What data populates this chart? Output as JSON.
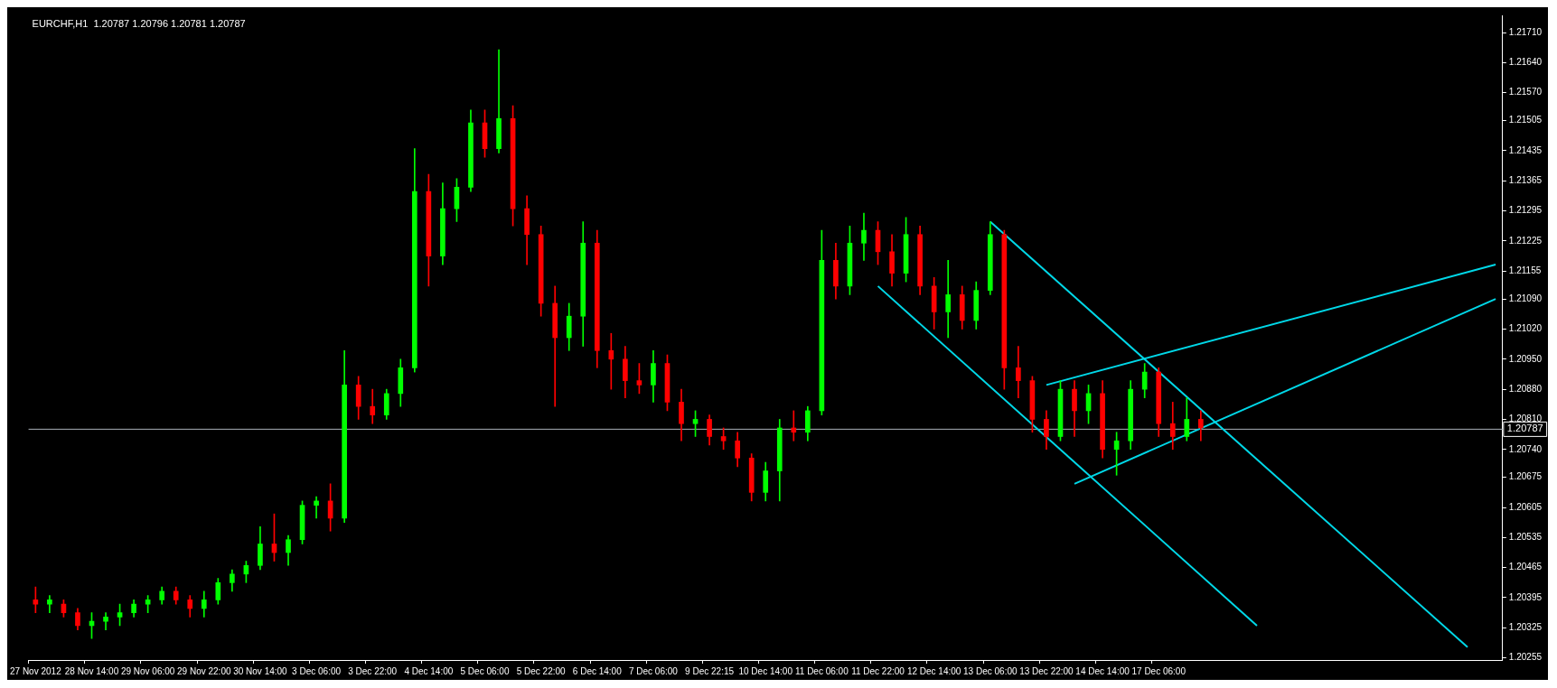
{
  "chart_data": {
    "type": "candlestick",
    "title": "EURCHF,H1  1.20787 1.20796 1.20781 1.20787",
    "categories": [
      "27 Nov 2012",
      null,
      null,
      null,
      "28 Nov 14:00",
      null,
      null,
      null,
      "29 Nov 06:00",
      null,
      null,
      null,
      "29 Nov 22:00",
      null,
      null,
      null,
      "30 Nov 14:00",
      null,
      null,
      null,
      "3 Dec 06:00",
      null,
      null,
      null,
      "3 Dec 22:00",
      null,
      null,
      null,
      "4 Dec 14:00",
      null,
      null,
      null,
      "5 Dec 06:00",
      null,
      null,
      null,
      "5 Dec 22:00",
      null,
      null,
      null,
      "6 Dec 14:00",
      null,
      null,
      null,
      "7 Dec 06:00",
      null,
      null,
      null,
      "9 Dec 22:15",
      null,
      null,
      null,
      "10 Dec 14:00",
      null,
      null,
      null,
      "11 Dec 06:00",
      null,
      null,
      null,
      "11 Dec 22:00",
      null,
      null,
      null,
      "12 Dec 14:00",
      null,
      null,
      null,
      "13 Dec 06:00",
      null,
      null,
      null,
      "13 Dec 22:00",
      null,
      null,
      null,
      "14 Dec 14:00",
      null,
      null,
      null,
      "17 Dec 06:00",
      null,
      null,
      null,
      null,
      null,
      null,
      null,
      null,
      null,
      null,
      null,
      null,
      null,
      null,
      null,
      null,
      null,
      null,
      null,
      null,
      null,
      null,
      null,
      null
    ],
    "ohlc": [
      [
        1.2039,
        1.2042,
        1.2036,
        1.2038
      ],
      [
        1.2038,
        1.204,
        1.2036,
        1.2039
      ],
      [
        1.2038,
        1.2039,
        1.2035,
        1.2036
      ],
      [
        1.2036,
        1.2037,
        1.2032,
        1.2033
      ],
      [
        1.2033,
        1.2036,
        1.203,
        1.2034
      ],
      [
        1.2034,
        1.2036,
        1.2032,
        1.2035
      ],
      [
        1.2035,
        1.2038,
        1.2033,
        1.2036
      ],
      [
        1.2036,
        1.2039,
        1.2035,
        1.2038
      ],
      [
        1.2038,
        1.204,
        1.2036,
        1.2039
      ],
      [
        1.2039,
        1.2042,
        1.2038,
        1.2041
      ],
      [
        1.2041,
        1.2042,
        1.2038,
        1.2039
      ],
      [
        1.2039,
        1.204,
        1.2035,
        1.2037
      ],
      [
        1.2037,
        1.2041,
        1.2035,
        1.2039
      ],
      [
        1.2039,
        1.2044,
        1.2038,
        1.2043
      ],
      [
        1.2043,
        1.2046,
        1.2041,
        1.2045
      ],
      [
        1.2045,
        1.2048,
        1.2043,
        1.2047
      ],
      [
        1.2047,
        1.2056,
        1.2046,
        1.2052
      ],
      [
        1.2052,
        1.2059,
        1.2048,
        1.205
      ],
      [
        1.205,
        1.2054,
        1.2047,
        1.2053
      ],
      [
        1.2053,
        1.2062,
        1.2052,
        1.2061
      ],
      [
        1.2061,
        1.2063,
        1.2058,
        1.2062
      ],
      [
        1.2062,
        1.2066,
        1.2055,
        1.2058
      ],
      [
        1.2058,
        1.2097,
        1.2057,
        1.2089
      ],
      [
        1.2089,
        1.2091,
        1.2081,
        1.2084
      ],
      [
        1.2084,
        1.2088,
        1.208,
        1.2082
      ],
      [
        1.2082,
        1.2088,
        1.2081,
        1.2087
      ],
      [
        1.2087,
        1.2095,
        1.2084,
        1.2093
      ],
      [
        1.2093,
        1.2144,
        1.2092,
        1.2134
      ],
      [
        1.2134,
        1.2138,
        1.2112,
        1.2119
      ],
      [
        1.2119,
        1.2136,
        1.2117,
        1.213
      ],
      [
        1.213,
        1.2137,
        1.2127,
        1.2135
      ],
      [
        1.2135,
        1.2153,
        1.2134,
        1.215
      ],
      [
        1.215,
        1.2153,
        1.2142,
        1.2144
      ],
      [
        1.2144,
        1.2167,
        1.2143,
        1.2151
      ],
      [
        1.2151,
        1.2154,
        1.2126,
        1.213
      ],
      [
        1.213,
        1.2133,
        1.2117,
        1.2124
      ],
      [
        1.2124,
        1.2126,
        1.2105,
        1.2108
      ],
      [
        1.2108,
        1.2112,
        1.2084,
        1.21
      ],
      [
        1.21,
        1.2108,
        1.2097,
        1.2105
      ],
      [
        1.2105,
        1.2127,
        1.2098,
        1.2122
      ],
      [
        1.2122,
        1.2125,
        1.2093,
        1.2097
      ],
      [
        1.2097,
        1.2101,
        1.2088,
        1.2095
      ],
      [
        1.2095,
        1.2098,
        1.2086,
        1.209
      ],
      [
        1.209,
        1.2094,
        1.2087,
        1.2089
      ],
      [
        1.2089,
        1.2097,
        1.2085,
        1.2094
      ],
      [
        1.2094,
        1.2096,
        1.2083,
        1.2085
      ],
      [
        1.2085,
        1.2088,
        1.2076,
        1.208
      ],
      [
        1.208,
        1.2083,
        1.2077,
        1.2081
      ],
      [
        1.2081,
        1.2082,
        1.2075,
        1.2077
      ],
      [
        1.2077,
        1.2079,
        1.2074,
        1.2076
      ],
      [
        1.2076,
        1.2078,
        1.207,
        1.2072
      ],
      [
        1.2072,
        1.2073,
        1.2062,
        1.2064
      ],
      [
        1.2064,
        1.2071,
        1.2062,
        1.2069
      ],
      [
        1.2069,
        1.2081,
        1.2062,
        1.2079
      ],
      [
        1.2079,
        1.2083,
        1.2076,
        1.2078
      ],
      [
        1.2078,
        1.2084,
        1.2076,
        1.2083
      ],
      [
        1.2083,
        1.2125,
        1.2082,
        1.2118
      ],
      [
        1.2118,
        1.2122,
        1.2109,
        1.2112
      ],
      [
        1.2112,
        1.2126,
        1.211,
        1.2122
      ],
      [
        1.2122,
        1.2129,
        1.2118,
        1.2125
      ],
      [
        1.2125,
        1.2127,
        1.2117,
        1.212
      ],
      [
        1.212,
        1.2124,
        1.2112,
        1.2115
      ],
      [
        1.2115,
        1.2128,
        1.2113,
        1.2124
      ],
      [
        1.2124,
        1.2126,
        1.211,
        1.2112
      ],
      [
        1.2112,
        1.2114,
        1.2102,
        1.2106
      ],
      [
        1.2106,
        1.2118,
        1.21,
        1.211
      ],
      [
        1.211,
        1.2112,
        1.2102,
        1.2104
      ],
      [
        1.2104,
        1.2113,
        1.2102,
        1.2111
      ],
      [
        1.2111,
        1.2127,
        1.211,
        1.2124
      ],
      [
        1.2124,
        1.2125,
        1.2088,
        1.2093
      ],
      [
        1.2093,
        1.2098,
        1.2086,
        1.209
      ],
      [
        1.209,
        1.2091,
        1.2078,
        1.2081
      ],
      [
        1.2081,
        1.2083,
        1.2074,
        1.2077
      ],
      [
        1.2077,
        1.209,
        1.2076,
        1.2088
      ],
      [
        1.2088,
        1.209,
        1.2077,
        1.2083
      ],
      [
        1.2083,
        1.2089,
        1.208,
        1.2087
      ],
      [
        1.2087,
        1.209,
        1.2072,
        1.2074
      ],
      [
        1.2074,
        1.2078,
        1.2068,
        1.2076
      ],
      [
        1.2076,
        1.209,
        1.2074,
        1.2088
      ],
      [
        1.2088,
        1.2094,
        1.2086,
        1.2092
      ],
      [
        1.2092,
        1.2093,
        1.2077,
        1.208
      ],
      [
        1.208,
        1.2085,
        1.2074,
        1.2077
      ],
      [
        1.2077,
        1.2086,
        1.2076,
        1.2081
      ],
      [
        1.2081,
        1.2083,
        1.2076,
        1.2079
      ],
      null,
      null,
      null,
      null,
      null,
      null,
      null,
      null,
      null,
      null,
      null,
      null,
      null,
      null,
      null,
      null,
      null,
      null,
      null,
      null,
      null
    ],
    "colors": [
      "#ff0000",
      "#00ff00",
      "#ff0000",
      "#ff0000",
      "#00ff00",
      "#00ff00",
      "#00ff00",
      "#00ff00",
      "#00ff00",
      "#00ff00",
      "#ff0000",
      "#ff0000",
      "#00ff00",
      "#00ff00",
      "#00ff00",
      "#00ff00",
      "#00ff00",
      "#ff0000",
      "#00ff00",
      "#00ff00",
      "#00ff00",
      "#ff0000",
      "#00ff00",
      "#ff0000",
      "#ff0000",
      "#00ff00",
      "#00ff00",
      "#00ff00",
      "#ff0000",
      "#00ff00",
      "#00ff00",
      "#00ff00",
      "#ff0000",
      "#00ff00",
      "#ff0000",
      "#ff0000",
      "#ff0000",
      "#ff0000",
      "#00ff00",
      "#00ff00",
      "#ff0000",
      "#ff0000",
      "#ff0000",
      "#ff0000",
      "#00ff00",
      "#ff0000",
      "#ff0000",
      "#00ff00",
      "#ff0000",
      "#ff0000",
      "#ff0000",
      "#ff0000",
      "#00ff00",
      "#00ff00",
      "#ff0000",
      "#00ff00",
      "#00ff00",
      "#ff0000",
      "#00ff00",
      "#00ff00",
      "#ff0000",
      "#ff0000",
      "#00ff00",
      "#ff0000",
      "#ff0000",
      "#00ff00",
      "#ff0000",
      "#00ff00",
      "#00ff00",
      "#ff0000",
      "#ff0000",
      "#ff0000",
      "#ff0000",
      "#00ff00",
      "#ff0000",
      "#00ff00",
      "#ff0000",
      "#00ff00",
      "#00ff00",
      "#00ff00",
      "#ff0000",
      "#ff0000",
      "#00ff00",
      "#ff0000",
      null,
      null,
      null,
      null,
      null,
      null,
      null,
      null,
      null,
      null,
      null,
      null,
      null,
      null,
      null,
      null,
      null,
      null,
      null,
      null,
      null
    ],
    "series": [
      {
        "type": "line",
        "color": "#00d8e8",
        "values": [
          null,
          null,
          null,
          null,
          null,
          null,
          null,
          null,
          null,
          null,
          null,
          null,
          null,
          null,
          null,
          null,
          null,
          null,
          null,
          null,
          null,
          null,
          null,
          null,
          null,
          null,
          null,
          null,
          null,
          null,
          null,
          null,
          null,
          null,
          null,
          null,
          null,
          null,
          null,
          null,
          null,
          null,
          null,
          null,
          null,
          null,
          null,
          null,
          null,
          null,
          null,
          null,
          null,
          null,
          null,
          null,
          null,
          null,
          null,
          null,
          null,
          null,
          null,
          null,
          null,
          null,
          null,
          null,
          1.2127,
          null,
          null,
          null,
          null,
          null,
          null,
          null,
          null,
          null,
          null,
          null,
          null,
          null,
          null,
          null,
          null,
          null,
          null,
          null,
          null,
          null,
          null,
          null,
          null,
          null,
          null,
          null,
          null,
          null,
          null,
          null,
          null,
          null,
          1.2028,
          null,
          null
        ]
      },
      {
        "type": "line",
        "color": "#00d8e8",
        "values": [
          null,
          null,
          null,
          null,
          null,
          null,
          null,
          null,
          null,
          null,
          null,
          null,
          null,
          null,
          null,
          null,
          null,
          null,
          null,
          null,
          null,
          null,
          null,
          null,
          null,
          null,
          null,
          null,
          null,
          null,
          null,
          null,
          null,
          null,
          null,
          null,
          null,
          null,
          null,
          null,
          null,
          null,
          null,
          null,
          null,
          null,
          null,
          null,
          null,
          null,
          null,
          null,
          null,
          null,
          null,
          null,
          null,
          null,
          null,
          null,
          1.2112,
          null,
          null,
          null,
          null,
          null,
          null,
          null,
          null,
          null,
          null,
          null,
          null,
          null,
          null,
          null,
          null,
          null,
          null,
          null,
          null,
          null,
          null,
          null,
          null,
          null,
          null,
          1.2033,
          null,
          null,
          null,
          null,
          null,
          null,
          null,
          null,
          null,
          null,
          null,
          null,
          null,
          null,
          null,
          null,
          null
        ]
      },
      {
        "type": "line",
        "color": "#00d8e8",
        "values": [
          null,
          null,
          null,
          null,
          null,
          null,
          null,
          null,
          null,
          null,
          null,
          null,
          null,
          null,
          null,
          null,
          null,
          null,
          null,
          null,
          null,
          null,
          null,
          null,
          null,
          null,
          null,
          null,
          null,
          null,
          null,
          null,
          null,
          null,
          null,
          null,
          null,
          null,
          null,
          null,
          null,
          null,
          null,
          null,
          null,
          null,
          null,
          null,
          null,
          null,
          null,
          null,
          null,
          null,
          null,
          null,
          null,
          null,
          null,
          null,
          null,
          null,
          null,
          null,
          null,
          null,
          null,
          null,
          null,
          null,
          null,
          null,
          1.2089,
          null,
          null,
          null,
          null,
          null,
          null,
          null,
          null,
          null,
          null,
          null,
          null,
          null,
          null,
          null,
          null,
          null,
          null,
          null,
          null,
          null,
          null,
          null,
          null,
          null,
          null,
          null,
          null,
          null,
          null,
          null,
          1.2117
        ]
      },
      {
        "type": "line",
        "color": "#00d8e8",
        "values": [
          null,
          null,
          null,
          null,
          null,
          null,
          null,
          null,
          null,
          null,
          null,
          null,
          null,
          null,
          null,
          null,
          null,
          null,
          null,
          null,
          null,
          null,
          null,
          null,
          null,
          null,
          null,
          null,
          null,
          null,
          null,
          null,
          null,
          null,
          null,
          null,
          null,
          null,
          null,
          null,
          null,
          null,
          null,
          null,
          null,
          null,
          null,
          null,
          null,
          null,
          null,
          null,
          null,
          null,
          null,
          null,
          null,
          null,
          null,
          null,
          null,
          null,
          null,
          null,
          null,
          null,
          null,
          null,
          null,
          null,
          null,
          null,
          null,
          null,
          1.2066,
          null,
          null,
          null,
          null,
          null,
          null,
          null,
          null,
          null,
          null,
          null,
          null,
          null,
          null,
          null,
          null,
          null,
          null,
          null,
          null,
          null,
          null,
          null,
          null,
          null,
          null,
          null,
          null,
          null,
          1.2109
        ]
      }
    ],
    "ylim": [
      1.2025,
      1.2175
    ],
    "yticks": [
      {
        "value": 1.2171,
        "label": "1.21710"
      },
      {
        "value": 1.2164,
        "label": "1.21640"
      },
      {
        "value": 1.2157,
        "label": "1.21570"
      },
      {
        "value": 1.21505,
        "label": "1.21505"
      },
      {
        "value": 1.21435,
        "label": "1.21435"
      },
      {
        "value": 1.21365,
        "label": "1.21365"
      },
      {
        "value": 1.21295,
        "label": "1.21295"
      },
      {
        "value": 1.21225,
        "label": "1.21225"
      },
      {
        "value": 1.21155,
        "label": "1.21155"
      },
      {
        "value": 1.2109,
        "label": "1.21090"
      },
      {
        "value": 1.2102,
        "label": "1.21020"
      },
      {
        "value": 1.2095,
        "label": "1.20950"
      },
      {
        "value": 1.2088,
        "label": "1.20880"
      },
      {
        "value": 1.2081,
        "label": "1.20810"
      },
      {
        "value": 1.2074,
        "label": "1.20740"
      },
      {
        "value": 1.20675,
        "label": "1.20675"
      },
      {
        "value": 1.20605,
        "label": "1.20605"
      },
      {
        "value": 1.20535,
        "label": "1.20535"
      },
      {
        "value": 1.20465,
        "label": "1.20465"
      },
      {
        "value": 1.20395,
        "label": "1.20395"
      },
      {
        "value": 1.20325,
        "label": "1.20325"
      },
      {
        "value": 1.20255,
        "label": "1.20255"
      }
    ],
    "ref_lines": [
      {
        "axis": "y",
        "value": 1.20787,
        "label": "1.20787",
        "color": "#a8b0b8"
      }
    ]
  }
}
